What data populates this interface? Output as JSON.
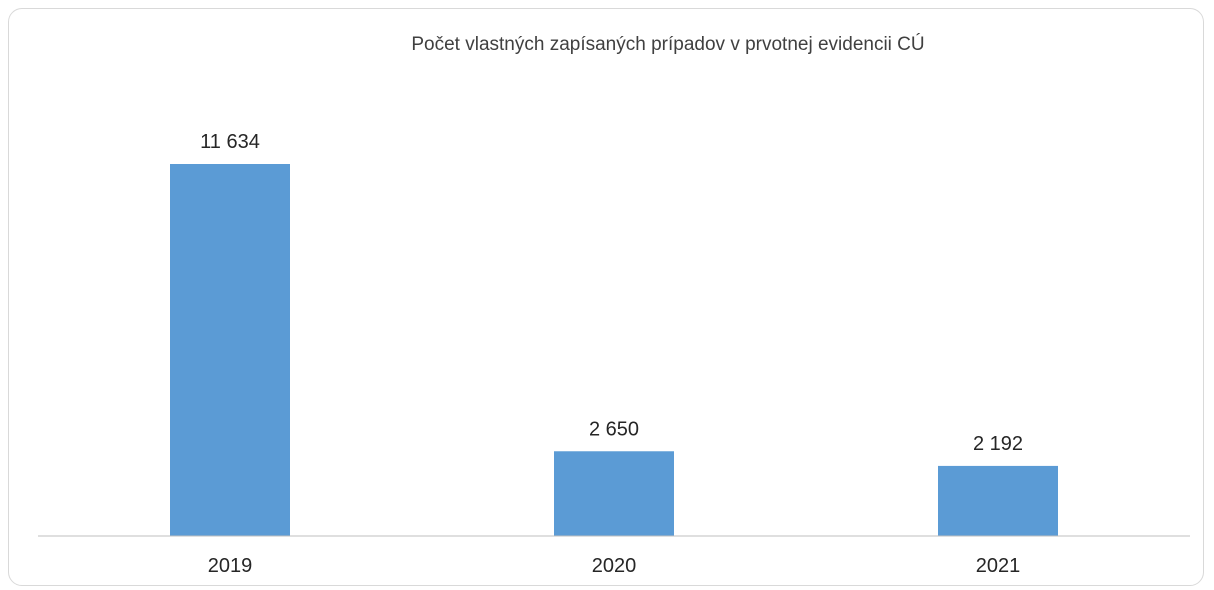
{
  "chart_data": {
    "type": "bar",
    "title": "Počet vlastných zapísaných prípadov v prvotnej evidencii CÚ",
    "categories": [
      "2019",
      "2020",
      "2021"
    ],
    "values": [
      11634,
      2650,
      2192
    ],
    "data_labels": [
      "11 634",
      "2 650",
      "2 192"
    ],
    "xlabel": "",
    "ylabel": "",
    "ylim": [
      0,
      13000
    ],
    "grid": false,
    "legend": "none",
    "bar_color": "#5b9bd5"
  }
}
